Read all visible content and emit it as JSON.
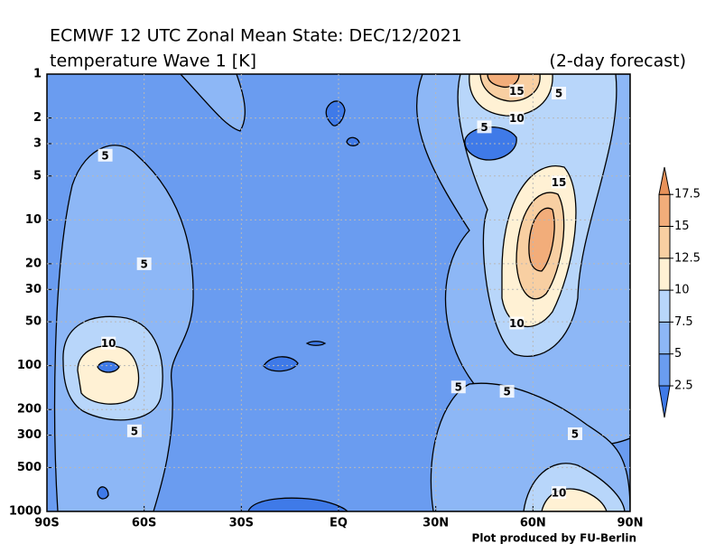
{
  "chart_data": {
    "type": "contour",
    "title": "ECMWF 12 UTC Zonal Mean State: DEC/12/2021",
    "subtitle": "temperature Wave 1 [K]",
    "annotation": "(2-day forecast)",
    "footer": "Plot produced by FU-Berlin",
    "xlim": [
      -90,
      90
    ],
    "xticks": [
      {
        "value": -90,
        "label": "90S"
      },
      {
        "value": -60,
        "label": "60S"
      },
      {
        "value": -30,
        "label": "30S"
      },
      {
        "value": 0,
        "label": "EQ"
      },
      {
        "value": 30,
        "label": "30N"
      },
      {
        "value": 60,
        "label": "60N"
      },
      {
        "value": 90,
        "label": "90N"
      }
    ],
    "ylim": [
      1000,
      1
    ],
    "ylog": true,
    "yticks": [
      1,
      2,
      3,
      5,
      10,
      20,
      30,
      50,
      100,
      200,
      300,
      500,
      1000
    ],
    "grid": true,
    "levels": [
      2.5,
      5,
      7.5,
      10,
      12.5,
      15,
      17.5
    ],
    "colors": [
      "#3f7ae8",
      "#6a9cf0",
      "#8db7f6",
      "#b8d6fa",
      "#fff1d4",
      "#f8cfa2",
      "#f2ad7a",
      "#e8925a"
    ],
    "contour_labels": [
      {
        "value": 5,
        "x": -72,
        "y": 3.6
      },
      {
        "value": 5,
        "x": -60,
        "y": 20
      },
      {
        "value": 10,
        "x": -71,
        "y": 70
      },
      {
        "value": 5,
        "x": -63,
        "y": 280
      },
      {
        "value": 15,
        "x": 55,
        "y": 1.3
      },
      {
        "value": 5,
        "x": 68,
        "y": 1.35
      },
      {
        "value": 10,
        "x": 55,
        "y": 2
      },
      {
        "value": 5,
        "x": 45,
        "y": 2.3
      },
      {
        "value": 15,
        "x": 68,
        "y": 5.5
      },
      {
        "value": 10,
        "x": 55,
        "y": 51
      },
      {
        "value": 5,
        "x": 37,
        "y": 140
      },
      {
        "value": 5,
        "x": 52,
        "y": 150
      },
      {
        "value": 5,
        "x": 73,
        "y": 293
      },
      {
        "value": 10,
        "x": 68,
        "y": 742
      }
    ]
  }
}
